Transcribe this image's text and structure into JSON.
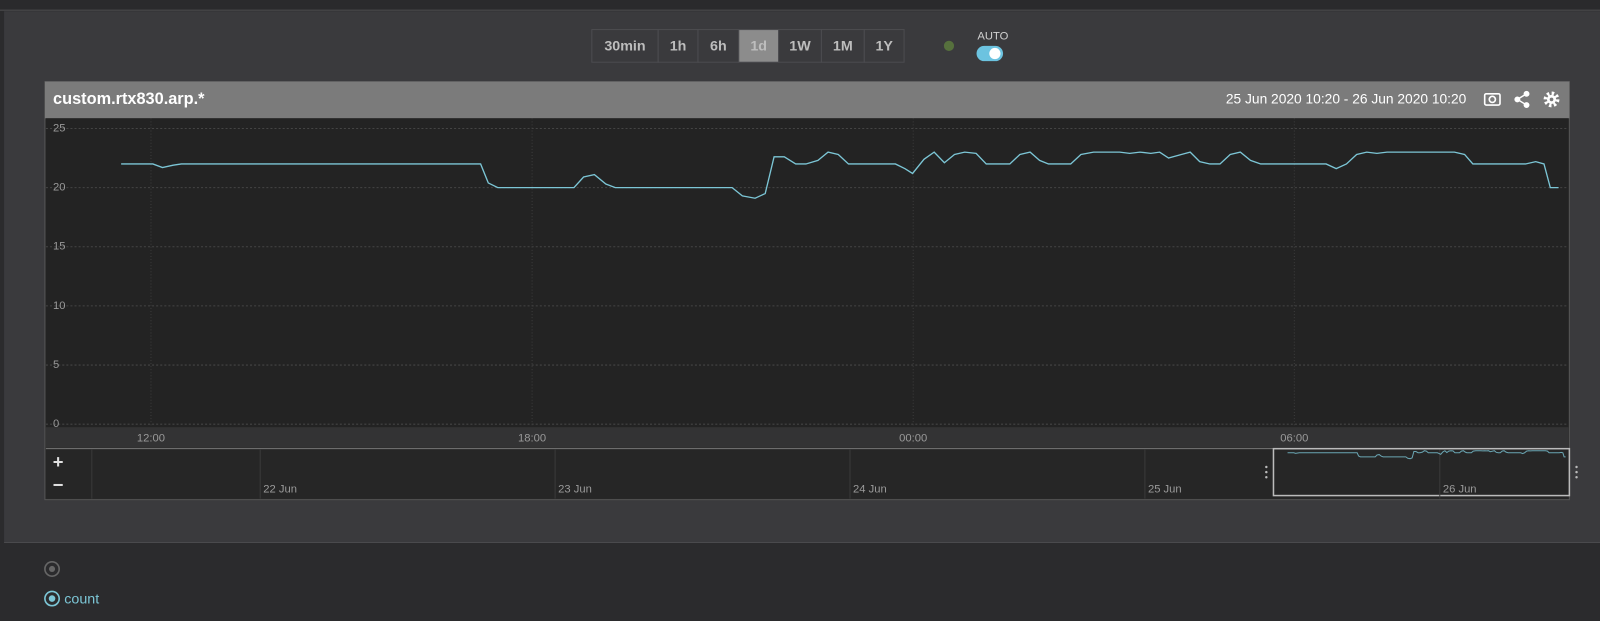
{
  "toolbar": {
    "ranges": [
      "30min",
      "1h",
      "6h",
      "1d",
      "1W",
      "1M",
      "1Y"
    ],
    "selected_index": 3,
    "auto_label": "AUTO"
  },
  "panel": {
    "title": "custom.rtx830.arp.*",
    "date_range": "25 Jun 2020 10:20 - 26 Jun 2020 10:20"
  },
  "chart_data": {
    "type": "line",
    "x": [
      11.53,
      12.03,
      12.18,
      12.35,
      12.48,
      17.19,
      17.31,
      17.46,
      18.66,
      18.81,
      18.98,
      19.16,
      19.31,
      21.15,
      21.31,
      21.51,
      21.67,
      21.81,
      21.97,
      22.15,
      22.31,
      22.5,
      22.66,
      22.82,
      22.98,
      23.72,
      23.87,
      23.99,
      24.17,
      24.33,
      24.49,
      24.65,
      24.81,
      24.99,
      25.15,
      25.52,
      25.68,
      25.84,
      25.99,
      26.13,
      26.48,
      26.64,
      26.84,
      27.25,
      27.41,
      27.57,
      27.74,
      27.88,
      28.02,
      28.22,
      28.36,
      28.51,
      28.67,
      28.83,
      28.99,
      29.15,
      29.31,
      29.47,
      30.5,
      30.66,
      30.82,
      30.98,
      31.14,
      31.3,
      31.46,
      32.52,
      32.68,
      32.81,
      33.64,
      33.8,
      33.93,
      34.03,
      34.16
    ],
    "series": [
      {
        "name": "count",
        "color": "#7cc6d6",
        "values": [
          22,
          22,
          21.7,
          21.9,
          22,
          22,
          20.4,
          20,
          20,
          20.9,
          21.1,
          20.3,
          20,
          20,
          19.3,
          19.1,
          19.5,
          22.6,
          22.6,
          22,
          22,
          22.3,
          23,
          22.8,
          22,
          22,
          21.6,
          21.2,
          22.4,
          23,
          22.1,
          22.8,
          23,
          22.9,
          22,
          22,
          22.8,
          23,
          22.3,
          22,
          22,
          22.8,
          23,
          23,
          22.9,
          23,
          22.9,
          23,
          22.5,
          22.8,
          23,
          22.2,
          22,
          22,
          22.8,
          23,
          22.3,
          22,
          22,
          21.6,
          22,
          22.8,
          23,
          22.9,
          23,
          23,
          22.8,
          22,
          22,
          22.2,
          22,
          20,
          20
        ]
      }
    ],
    "xlim": [
      10.33,
      34.33
    ],
    "xticks": [
      {
        "value": 12,
        "label": "12:00"
      },
      {
        "value": 18,
        "label": "18:00"
      },
      {
        "value": 24,
        "label": "00:00"
      },
      {
        "value": 30,
        "label": "06:00"
      }
    ],
    "ylim": [
      0,
      25
    ],
    "yticks": [
      0,
      5,
      10,
      15,
      20,
      25
    ],
    "grid": true
  },
  "navigator": {
    "zoom_in": "+",
    "zoom_out": "−",
    "labels": [
      "22 Jun",
      "23 Jun",
      "24 Jun",
      "25 Jun",
      "26 Jun"
    ]
  }
}
